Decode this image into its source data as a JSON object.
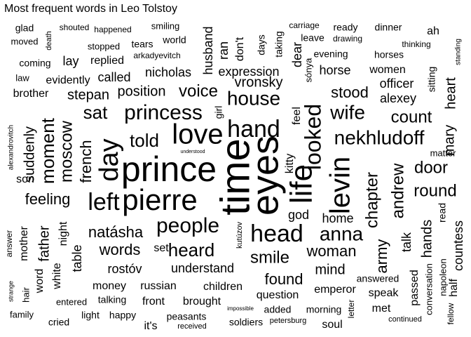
{
  "chart_data": {
    "type": "wordcloud",
    "title": "Most frequent words in Leo Tolstoy",
    "words": [
      {
        "text": "time",
        "rank": 1
      },
      {
        "text": "eyes",
        "rank": 2
      },
      {
        "text": "prince",
        "rank": 3
      },
      {
        "text": "pierre",
        "rank": 4
      },
      {
        "text": "life",
        "rank": 5
      },
      {
        "text": "love",
        "rank": 6
      },
      {
        "text": "day",
        "rank": 7
      },
      {
        "text": "levin",
        "rank": 8
      },
      {
        "text": "hand",
        "rank": 9
      },
      {
        "text": "head",
        "rank": 10
      },
      {
        "text": "looked",
        "rank": 11
      },
      {
        "text": "princess",
        "rank": 12
      },
      {
        "text": "people",
        "rank": 13
      },
      {
        "text": "left",
        "rank": 14
      },
      {
        "text": "house",
        "rank": 15
      },
      {
        "text": "nekhludoff",
        "rank": 16
      },
      {
        "text": "anna",
        "rank": 17
      },
      {
        "text": "wife",
        "rank": 18
      },
      {
        "text": "told",
        "rank": 19
      },
      {
        "text": "heard",
        "rank": 20
      },
      {
        "text": "moment",
        "rank": 21
      },
      {
        "text": "moscow",
        "rank": 22
      },
      {
        "text": "chapter",
        "rank": 23
      },
      {
        "text": "andrew",
        "rank": 24
      },
      {
        "text": "round",
        "rank": 25
      },
      {
        "text": "count",
        "rank": 26
      },
      {
        "text": "door",
        "rank": 27
      },
      {
        "text": "voice",
        "rank": 28
      },
      {
        "text": "sat",
        "rank": 29
      },
      {
        "text": "smile",
        "rank": 30
      },
      {
        "text": "natásha",
        "rank": 31
      },
      {
        "text": "words",
        "rank": 32
      },
      {
        "text": "woman",
        "rank": 33
      },
      {
        "text": "feeling",
        "rank": 34
      },
      {
        "text": "french",
        "rank": 35
      },
      {
        "text": "suddenly",
        "rank": 36
      },
      {
        "text": "stood",
        "rank": 37
      },
      {
        "text": "mary",
        "rank": 38
      },
      {
        "text": "army",
        "rank": 39
      },
      {
        "text": "found",
        "rank": 40
      },
      {
        "text": "mind",
        "rank": 41
      },
      {
        "text": "position",
        "rank": 42
      },
      {
        "text": "vronsky",
        "rank": 43
      },
      {
        "text": "heart",
        "rank": 44
      },
      {
        "text": "hands",
        "rank": 45
      },
      {
        "text": "countess",
        "rank": 46
      },
      {
        "text": "alexey",
        "rank": 47
      },
      {
        "text": "stepan",
        "rank": 48
      },
      {
        "text": "nicholas",
        "rank": 49
      },
      {
        "text": "expression",
        "rank": 50
      },
      {
        "text": "horse",
        "rank": 51
      },
      {
        "text": "officer",
        "rank": 52
      },
      {
        "text": "father",
        "rank": 53
      },
      {
        "text": "rostóv",
        "rank": 54
      },
      {
        "text": "understand",
        "rank": 55
      },
      {
        "text": "children",
        "rank": 56
      },
      {
        "text": "question",
        "rank": 57
      },
      {
        "text": "emperor",
        "rank": 58
      },
      {
        "text": "money",
        "rank": 59
      },
      {
        "text": "russian",
        "rank": 60
      },
      {
        "text": "front",
        "rank": 61
      },
      {
        "text": "brought",
        "rank": 62
      },
      {
        "text": "god",
        "rank": 63
      },
      {
        "text": "home",
        "rank": 64
      },
      {
        "text": "talk",
        "rank": 65
      },
      {
        "text": "husband",
        "rank": 66
      },
      {
        "text": "called",
        "rank": 67
      },
      {
        "text": "evidently",
        "rank": 68
      },
      {
        "text": "lay",
        "rank": 69
      },
      {
        "text": "replied",
        "rank": 70
      },
      {
        "text": "brother",
        "rank": 71
      },
      {
        "text": "son",
        "rank": 72
      },
      {
        "text": "mother",
        "rank": 73
      },
      {
        "text": "table",
        "rank": 74
      },
      {
        "text": "white",
        "rank": 75
      },
      {
        "text": "word",
        "rank": 76
      },
      {
        "text": "night",
        "rank": 77
      },
      {
        "text": "set",
        "rank": 78
      },
      {
        "text": "kitty",
        "rank": 79
      },
      {
        "text": "feel",
        "rank": 80
      },
      {
        "text": "women",
        "rank": 81
      },
      {
        "text": "speak",
        "rank": 82
      },
      {
        "text": "passed",
        "rank": 83
      },
      {
        "text": "answered",
        "rank": 84
      },
      {
        "text": "met",
        "rank": 85
      },
      {
        "text": "soul",
        "rank": 86
      },
      {
        "text": "ran",
        "rank": 87
      },
      {
        "text": "don't",
        "rank": 88
      },
      {
        "text": "dear",
        "rank": 89
      },
      {
        "text": "half",
        "rank": 90
      },
      {
        "text": "conversation",
        "rank": 91
      },
      {
        "text": "sitting",
        "rank": 92
      },
      {
        "text": "horses",
        "rank": 93
      },
      {
        "text": "matter",
        "rank": 94
      },
      {
        "text": "read",
        "rank": 95
      },
      {
        "text": "napoleon",
        "rank": 96
      },
      {
        "text": "taking",
        "rank": 97
      },
      {
        "text": "evening",
        "rank": 98
      },
      {
        "text": "sónya",
        "rank": 99
      },
      {
        "text": "ah",
        "rank": 100
      },
      {
        "text": "talking",
        "rank": 101
      },
      {
        "text": "light",
        "rank": 102
      },
      {
        "text": "happy",
        "rank": 103
      },
      {
        "text": "cried",
        "rank": 104
      },
      {
        "text": "it's",
        "rank": 105
      },
      {
        "text": "peasants",
        "rank": 106
      },
      {
        "text": "soldiers",
        "rank": 107
      },
      {
        "text": "added",
        "rank": 108
      },
      {
        "text": "morning",
        "rank": 109
      },
      {
        "text": "girl",
        "rank": 110
      },
      {
        "text": "world",
        "rank": 111
      },
      {
        "text": "tears",
        "rank": 112
      },
      {
        "text": "days",
        "rank": 113
      },
      {
        "text": "leave",
        "rank": 114
      },
      {
        "text": "ready",
        "rank": 115
      },
      {
        "text": "dinner",
        "rank": 116
      },
      {
        "text": "coming",
        "rank": 117
      },
      {
        "text": "glad",
        "rank": 118
      },
      {
        "text": "moved",
        "rank": 119
      },
      {
        "text": "stopped",
        "rank": 120
      },
      {
        "text": "law",
        "rank": 121
      },
      {
        "text": "hair",
        "rank": 122
      },
      {
        "text": "family",
        "rank": 123
      },
      {
        "text": "entered",
        "rank": 124
      },
      {
        "text": "answer",
        "rank": 125
      },
      {
        "text": "kutúzov",
        "rank": 126
      },
      {
        "text": "letter",
        "rank": 127
      },
      {
        "text": "fellow",
        "rank": 128
      },
      {
        "text": "smiling",
        "rank": 129
      },
      {
        "text": "arkadyevitch",
        "rank": 130
      },
      {
        "text": "shouted",
        "rank": 131
      },
      {
        "text": "happened",
        "rank": 132
      },
      {
        "text": "carriage",
        "rank": 133
      },
      {
        "text": "drawing",
        "rank": 134
      },
      {
        "text": "thinking",
        "rank": 135
      },
      {
        "text": "standing",
        "rank": 136
      },
      {
        "text": "death",
        "rank": 137
      },
      {
        "text": "alexandrovitch",
        "rank": 138
      },
      {
        "text": "strange",
        "rank": 139
      },
      {
        "text": "received",
        "rank": 140
      },
      {
        "text": "petersburg",
        "rank": 141
      },
      {
        "text": "continued",
        "rank": 142
      },
      {
        "text": "impossible",
        "rank": 143
      },
      {
        "text": "understood",
        "rank": 144
      }
    ]
  }
}
